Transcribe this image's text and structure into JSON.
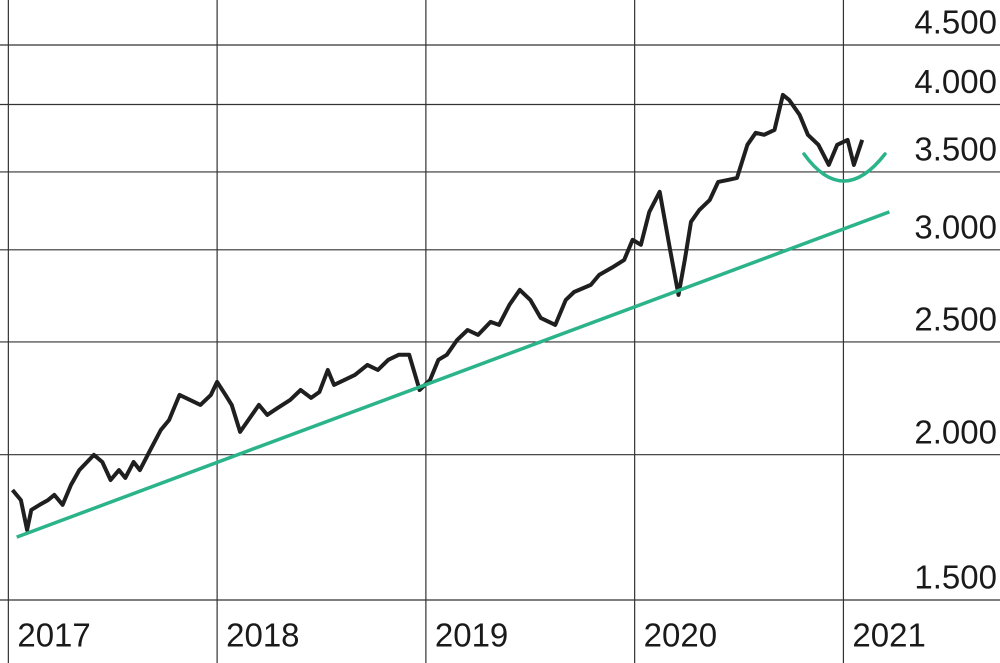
{
  "chart_data": {
    "type": "line",
    "yscale": "log",
    "ylim": [
      1500,
      4500
    ],
    "yticks": [
      {
        "value": 1500,
        "label": "1.500"
      },
      {
        "value": 2000,
        "label": "2.000"
      },
      {
        "value": 2500,
        "label": "2.500"
      },
      {
        "value": 3000,
        "label": "3.000"
      },
      {
        "value": 3500,
        "label": "3.500"
      },
      {
        "value": 4000,
        "label": "4.000"
      },
      {
        "value": 4500,
        "label": "4.500"
      }
    ],
    "xlim": [
      2016.96,
      2021.75
    ],
    "xticks": [
      2017,
      2018,
      2019,
      2020,
      2021
    ],
    "grid": true,
    "series": [
      {
        "color": "#1f1f1f",
        "x": [
          2017.02,
          2017.06,
          2017.09,
          2017.11,
          2017.15,
          2017.19,
          2017.22,
          2017.26,
          2017.3,
          2017.34,
          2017.41,
          2017.45,
          2017.49,
          2017.53,
          2017.56,
          2017.6,
          2017.63,
          2017.68,
          2017.73,
          2017.77,
          2017.82,
          2017.87,
          2017.92,
          2017.97,
          2018.0,
          2018.04,
          2018.07,
          2018.11,
          2018.15,
          2018.2,
          2018.24,
          2018.29,
          2018.35,
          2018.4,
          2018.45,
          2018.49,
          2018.53,
          2018.56,
          2018.61,
          2018.66,
          2018.72,
          2018.77,
          2018.82,
          2018.87,
          2018.92,
          2018.97,
          2019.02,
          2019.06,
          2019.1,
          2019.15,
          2019.2,
          2019.25,
          2019.31,
          2019.35,
          2019.4,
          2019.45,
          2019.5,
          2019.55,
          2019.62,
          2019.67,
          2019.71,
          2019.79,
          2019.83,
          2019.89,
          2019.95,
          2019.99,
          2020.03,
          2020.07,
          2020.12,
          2020.17,
          2020.21,
          2020.24,
          2020.27,
          2020.31,
          2020.36,
          2020.4,
          2020.45,
          2020.49,
          2020.54,
          2020.58,
          2020.62,
          2020.67,
          2020.71,
          2020.74,
          2020.79,
          2020.83,
          2020.88,
          2020.93,
          2020.97,
          2021.02,
          2021.05,
          2021.09
        ],
        "values": [
          1865,
          1828,
          1723,
          1793,
          1811,
          1828,
          1847,
          1811,
          1884,
          1940,
          1999,
          1971,
          1902,
          1940,
          1910,
          1971,
          1940,
          2019,
          2100,
          2142,
          2251,
          2229,
          2207,
          2251,
          2310,
          2251,
          2207,
          2092,
          2142,
          2207,
          2164,
          2194,
          2229,
          2273,
          2238,
          2264,
          2365,
          2296,
          2319,
          2342,
          2389,
          2365,
          2413,
          2437,
          2437,
          2273,
          2319,
          2413,
          2437,
          2510,
          2560,
          2535,
          2601,
          2586,
          2690,
          2771,
          2717,
          2622,
          2586,
          2717,
          2760,
          2799,
          2855,
          2895,
          2941,
          3060,
          3030,
          3234,
          3365,
          3000,
          2744,
          2941,
          3171,
          3247,
          3312,
          3432,
          3446,
          3459,
          3693,
          3782,
          3767,
          3804,
          4077,
          4037,
          3919,
          3767,
          3693,
          3549,
          3693,
          3729,
          3549,
          3729
        ]
      },
      {
        "color": "#2bb38a",
        "x": [
          2017.04,
          2021.22
        ],
        "values": [
          1699,
          3234
        ]
      }
    ]
  }
}
